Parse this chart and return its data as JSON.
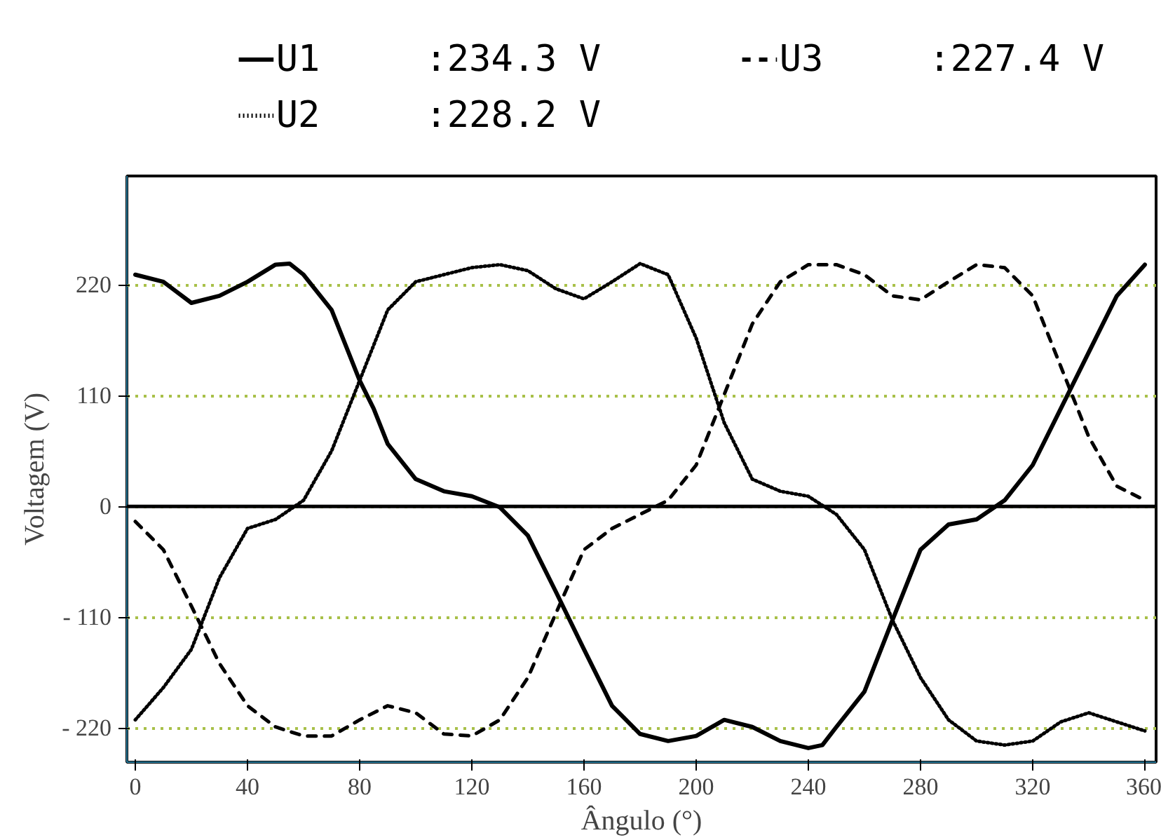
{
  "chart_data": {
    "type": "line",
    "xlabel": "Ângulo (°)",
    "ylabel": "Voltagem (V)",
    "x": [
      0,
      10,
      20,
      30,
      40,
      50,
      55,
      60,
      70,
      80,
      85,
      90,
      100,
      110,
      120,
      130,
      140,
      150,
      160,
      170,
      180,
      190,
      200,
      210,
      220,
      230,
      240,
      245,
      250,
      260,
      270,
      280,
      290,
      300,
      310,
      320,
      330,
      340,
      350,
      360
    ],
    "series": [
      {
        "name": "U1",
        "color": "#000000",
        "line_style": "solid",
        "values": [
          230,
          223,
          202,
          209,
          223,
          240,
          241,
          230,
          195,
          125,
          97,
          62,
          27,
          15,
          10,
          -1,
          -29,
          -85,
          -142,
          -198,
          -226,
          -233,
          -228,
          -212,
          -219,
          -233,
          -240,
          -237,
          -219,
          -184,
          -113,
          -43,
          -18,
          -13,
          6,
          41,
          97,
          153,
          209,
          240
        ]
      },
      {
        "name": "U2",
        "color": "#000000",
        "line_style": "dotted",
        "x": [
          0,
          10,
          20,
          30,
          40,
          50,
          60,
          70,
          80,
          90,
          100,
          110,
          120,
          130,
          140,
          150,
          160,
          170,
          180,
          190,
          200,
          210,
          220,
          230,
          240,
          250,
          260,
          270,
          280,
          290,
          300,
          310,
          320,
          330,
          340,
          350,
          360
        ],
        "values": [
          -212,
          -180,
          -142,
          -71,
          -22,
          -13,
          6,
          55,
          125,
          195,
          223,
          230,
          237,
          240,
          234,
          216,
          206,
          223,
          241,
          230,
          167,
          83,
          27,
          15,
          10,
          -8,
          -43,
          -113,
          -170,
          -212,
          -233,
          -237,
          -233,
          -214,
          -205,
          -214,
          -223
        ]
      },
      {
        "name": "U3",
        "color": "#000000",
        "line_style": "dashed",
        "x": [
          0,
          10,
          20,
          30,
          40,
          50,
          60,
          70,
          80,
          90,
          100,
          110,
          120,
          130,
          140,
          150,
          160,
          170,
          180,
          190,
          200,
          210,
          220,
          230,
          240,
          250,
          260,
          270,
          280,
          290,
          300,
          310,
          320,
          330,
          340,
          350,
          360
        ],
        "values": [
          -15,
          -43,
          -99,
          -156,
          -198,
          -219,
          -228,
          -228,
          -212,
          -198,
          -205,
          -226,
          -228,
          -212,
          -170,
          -106,
          -43,
          -22,
          -8,
          6,
          41,
          111,
          181,
          223,
          240,
          240,
          230,
          209,
          205,
          223,
          240,
          237,
          209,
          139,
          69,
          20,
          6
        ]
      }
    ],
    "annotations": [
      ":234.3 V",
      ":228.2 V",
      ":227.4 V"
    ],
    "xlim": [
      -3,
      364
    ],
    "ylim": [
      -254,
      328
    ],
    "xticks": [
      0,
      40,
      80,
      120,
      160,
      200,
      240,
      280,
      320,
      360
    ],
    "yticks": [
      {
        "value": -220,
        "label": "- 220"
      },
      {
        "value": -110,
        "label": "- 110"
      },
      0,
      110,
      220
    ],
    "ref_lines": [
      {
        "axis": "y",
        "value": 0,
        "color": "#000000"
      }
    ],
    "grid": "y",
    "legend": "top"
  }
}
